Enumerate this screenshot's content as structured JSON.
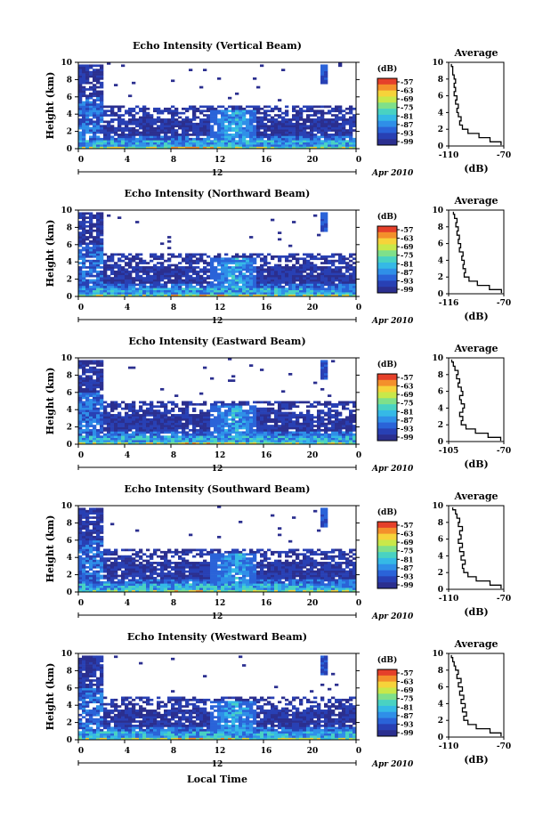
{
  "figure": {
    "shared_xlabel": "Local Time",
    "date_label": "Apr 2010",
    "midnight_label": "12",
    "unit_label": "(dB)",
    "avg_title": "Average",
    "ylabel": "Height (km)"
  },
  "colors": {
    "background": "#ffffff",
    "echo_palette": [
      "#2b2f8f",
      "#2840b4",
      "#2a63d8",
      "#2f8fe8",
      "#35b9e6",
      "#49d2c2",
      "#7fe08a",
      "#c8e84a",
      "#f6d33a",
      "#f4902b",
      "#e5402a"
    ]
  },
  "chart_data": [
    {
      "type": "heatmap",
      "title": "Echo Intensity (Vertical Beam)",
      "xlabel": "",
      "ylabel": "Height (km)",
      "x_ticks": [
        "0",
        "4",
        "8",
        "12",
        "16",
        "20",
        "0"
      ],
      "xlim": [
        0,
        24
      ],
      "y_ticks": [
        "0",
        "2",
        "4",
        "6",
        "8",
        "10"
      ],
      "ylim": [
        0,
        10
      ],
      "colorbar": {
        "label": "(dB)",
        "ticks": [
          "-57",
          "-63",
          "-69",
          "-75",
          "-81",
          "-87",
          "-93",
          "-99"
        ]
      },
      "average_profile": {
        "title": "Average",
        "xlabel": "(dB)",
        "x_ticks": [
          "-110",
          "-70"
        ],
        "xlim": [
          -110,
          -70
        ],
        "ylim": [
          0,
          10
        ],
        "height_km": [
          0.1,
          0.5,
          1,
          1.5,
          2,
          2.5,
          3,
          3.5,
          4,
          4.5,
          5,
          5.5,
          6,
          6.5,
          7,
          7.5,
          8,
          8.5,
          9,
          9.5
        ],
        "db": [
          -72,
          -80,
          -88,
          -96,
          -100,
          -102,
          -101,
          -103,
          -104,
          -103,
          -105,
          -104,
          -106,
          -105,
          -106,
          -105,
          -106,
          -107,
          -107,
          -108
        ]
      }
    },
    {
      "type": "heatmap",
      "title": "Echo Intensity (Northward Beam)",
      "xlabel": "",
      "ylabel": "Height (km)",
      "x_ticks": [
        "0",
        "4",
        "8",
        "12",
        "16",
        "20",
        "0"
      ],
      "xlim": [
        0,
        24
      ],
      "y_ticks": [
        "0",
        "2",
        "4",
        "6",
        "8",
        "10"
      ],
      "ylim": [
        0,
        10
      ],
      "colorbar": {
        "label": "(dB)",
        "ticks": [
          "-57",
          "-63",
          "-69",
          "-75",
          "-81",
          "-87",
          "-93",
          "-99"
        ]
      },
      "average_profile": {
        "title": "Average",
        "xlabel": "(dB)",
        "x_ticks": [
          "-116",
          "-70"
        ],
        "xlim": [
          -116,
          -70
        ],
        "ylim": [
          0,
          10
        ],
        "height_km": [
          0.1,
          0.5,
          1,
          1.5,
          2,
          2.5,
          3,
          3.5,
          4,
          4.5,
          5,
          5.5,
          6,
          6.5,
          7,
          7.5,
          8,
          8.5,
          9,
          9.5
        ],
        "db": [
          -72,
          -82,
          -92,
          -99,
          -103,
          -102,
          -104,
          -103,
          -105,
          -104,
          -107,
          -106,
          -108,
          -107,
          -109,
          -108,
          -110,
          -109,
          -111,
          -112
        ]
      }
    },
    {
      "type": "heatmap",
      "title": "Echo Intensity (Eastward Beam)",
      "xlabel": "",
      "ylabel": "Height (km)",
      "x_ticks": [
        "0",
        "4",
        "8",
        "12",
        "16",
        "20",
        "0"
      ],
      "xlim": [
        0,
        24
      ],
      "y_ticks": [
        "0",
        "2",
        "4",
        "6",
        "8",
        "10"
      ],
      "ylim": [
        0,
        10
      ],
      "colorbar": {
        "label": "(dB)",
        "ticks": [
          "-57",
          "-63",
          "-69",
          "-75",
          "-81",
          "-87",
          "-93",
          "-99"
        ]
      },
      "average_profile": {
        "title": "Average",
        "xlabel": "(dB)",
        "x_ticks": [
          "-105",
          "-70"
        ],
        "xlim": [
          -105,
          -70
        ],
        "ylim": [
          0,
          10
        ],
        "height_km": [
          0.1,
          0.5,
          1,
          1.5,
          2,
          2.5,
          3,
          3.5,
          4,
          4.5,
          5,
          5.5,
          6,
          6.5,
          7,
          7.5,
          8,
          8.5,
          9,
          9.5
        ],
        "db": [
          -72,
          -80,
          -88,
          -94,
          -97,
          -96,
          -98,
          -96,
          -95,
          -97,
          -98,
          -96,
          -97,
          -99,
          -98,
          -100,
          -99,
          -101,
          -102,
          -103
        ]
      }
    },
    {
      "type": "heatmap",
      "title": "Echo Intensity (Southward Beam)",
      "xlabel": "",
      "ylabel": "Height (km)",
      "x_ticks": [
        "0",
        "4",
        "8",
        "12",
        "16",
        "20",
        "0"
      ],
      "xlim": [
        0,
        24
      ],
      "y_ticks": [
        "0",
        "2",
        "4",
        "6",
        "8",
        "10"
      ],
      "ylim": [
        0,
        10
      ],
      "colorbar": {
        "label": "(dB)",
        "ticks": [
          "-57",
          "-63",
          "-69",
          "-75",
          "-81",
          "-87",
          "-93",
          "-99"
        ]
      },
      "average_profile": {
        "title": "Average",
        "xlabel": "(dB)",
        "x_ticks": [
          "-110",
          "-70"
        ],
        "xlim": [
          -110,
          -70
        ],
        "ylim": [
          0,
          10
        ],
        "height_km": [
          0.1,
          0.5,
          1,
          1.5,
          2,
          2.5,
          3,
          3.5,
          4,
          4.5,
          5,
          5.5,
          6,
          6.5,
          7,
          7.5,
          8,
          8.5,
          9,
          9.5
        ],
        "db": [
          -72,
          -80,
          -90,
          -96,
          -99,
          -100,
          -98,
          -101,
          -99,
          -102,
          -100,
          -103,
          -101,
          -102,
          -100,
          -103,
          -102,
          -104,
          -105,
          -107
        ]
      }
    },
    {
      "type": "heatmap",
      "title": "Echo Intensity (Westward Beam)",
      "xlabel": "Local Time",
      "ylabel": "Height (km)",
      "x_ticks": [
        "0",
        "4",
        "8",
        "12",
        "16",
        "20",
        "0"
      ],
      "xlim": [
        0,
        24
      ],
      "y_ticks": [
        "0",
        "2",
        "4",
        "6",
        "8",
        "10"
      ],
      "ylim": [
        0,
        10
      ],
      "colorbar": {
        "label": "(dB)",
        "ticks": [
          "-57",
          "-63",
          "-69",
          "-75",
          "-81",
          "-87",
          "-93",
          "-99"
        ]
      },
      "average_profile": {
        "title": "Average",
        "xlabel": "(dB)",
        "x_ticks": [
          "-110",
          "-70"
        ],
        "xlim": [
          -110,
          -70
        ],
        "ylim": [
          0,
          10
        ],
        "height_km": [
          0.1,
          0.5,
          1,
          1.5,
          2,
          2.5,
          3,
          3.5,
          4,
          4.5,
          5,
          5.5,
          6,
          6.5,
          7,
          7.5,
          8,
          8.5,
          9,
          9.5
        ],
        "db": [
          -72,
          -80,
          -90,
          -96,
          -99,
          -97,
          -100,
          -98,
          -101,
          -99,
          -102,
          -100,
          -103,
          -101,
          -104,
          -103,
          -105,
          -106,
          -107,
          -108
        ]
      }
    }
  ]
}
